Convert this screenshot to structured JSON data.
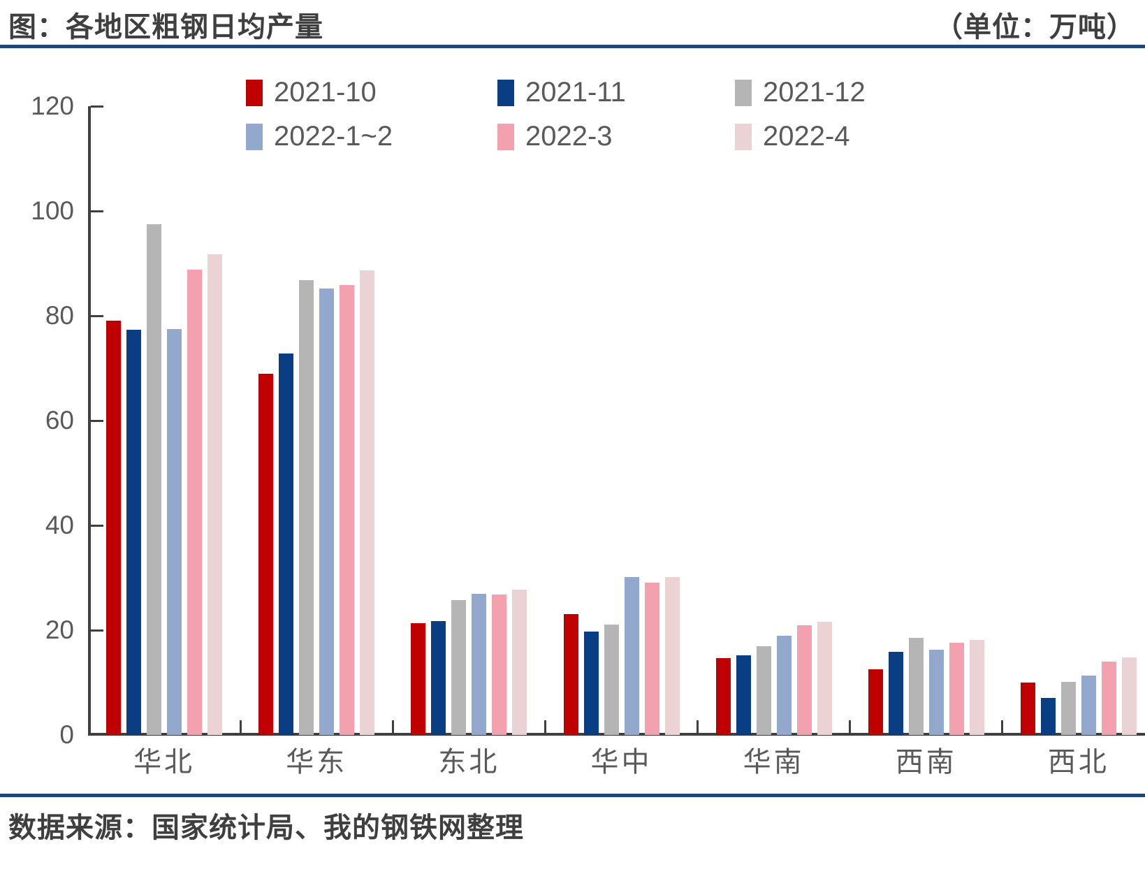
{
  "header": {
    "title": "图：各地区粗钢日均产量",
    "unit_label": "（单位：万吨）"
  },
  "source": {
    "text": "数据来源：国家统计局、我的钢铁网整理"
  },
  "colors": {
    "accent_rule": "#1f4778",
    "axis": "#3f3f3f",
    "tick_text": "#595959",
    "title_text": "#3f3f3f"
  },
  "chart_data": {
    "type": "bar",
    "title": "图：各地区粗钢日均产量",
    "unit": "万吨",
    "categories": [
      "华北",
      "华东",
      "东北",
      "华中",
      "华南",
      "西南",
      "西北"
    ],
    "series": [
      {
        "name": "2021-10",
        "color": "#c00000",
        "values": [
          79.1,
          69.0,
          21.4,
          23.1,
          14.7,
          12.6,
          10.0
        ]
      },
      {
        "name": "2021-11",
        "color": "#0a3e82",
        "values": [
          77.3,
          72.8,
          21.8,
          19.8,
          15.2,
          15.9,
          7.1
        ]
      },
      {
        "name": "2021-12",
        "color": "#b5b5b5",
        "values": [
          97.5,
          86.8,
          25.7,
          21.1,
          16.9,
          18.5,
          10.1
        ]
      },
      {
        "name": "2022-1~2",
        "color": "#92a9cd",
        "values": [
          77.5,
          85.2,
          26.9,
          30.1,
          18.9,
          16.3,
          11.4
        ]
      },
      {
        "name": "2022-3",
        "color": "#f4a1af",
        "values": [
          88.8,
          85.9,
          26.8,
          29.1,
          20.9,
          17.6,
          14.0
        ]
      },
      {
        "name": "2022-4",
        "color": "#ebd2d4",
        "values": [
          91.8,
          88.7,
          27.7,
          30.2,
          21.6,
          18.2,
          14.8
        ]
      }
    ],
    "ylim": [
      0,
      120
    ],
    "y_ticks": [
      0,
      20,
      40,
      60,
      80,
      100,
      120
    ],
    "xlabel": "",
    "ylabel": "",
    "grid": false,
    "legend_position": "top"
  }
}
